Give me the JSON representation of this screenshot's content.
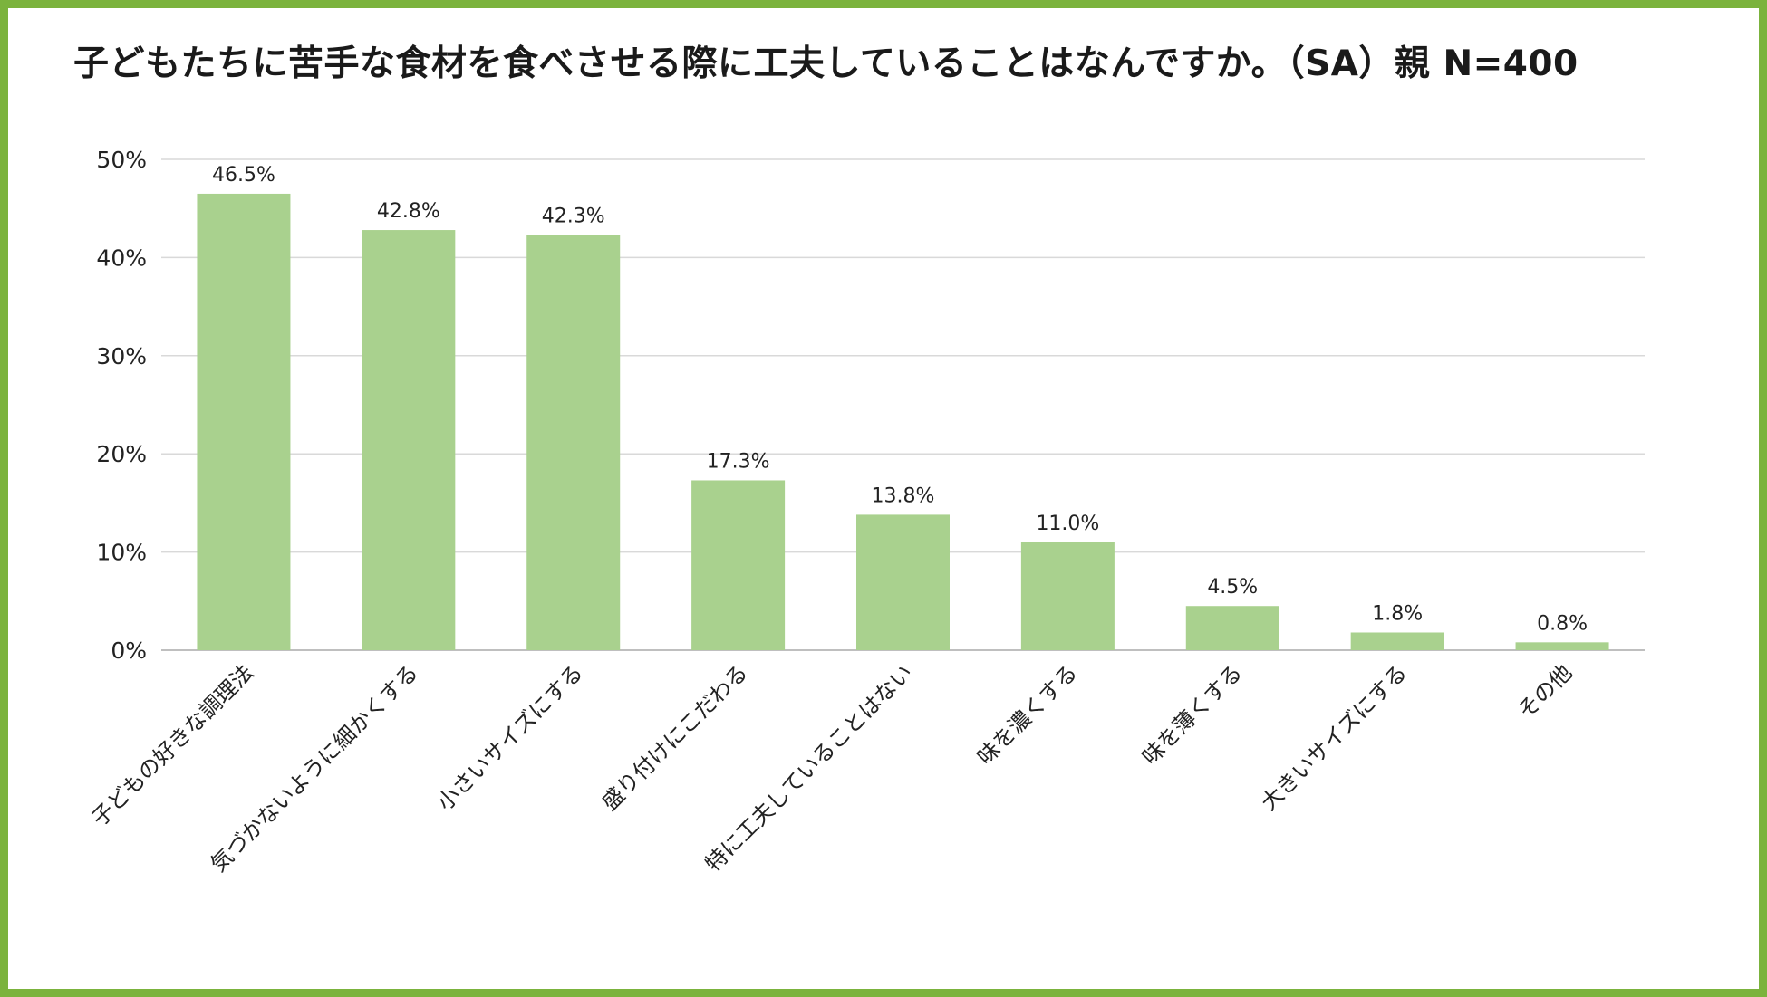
{
  "colors": {
    "frame": "#7bb33d",
    "bar": "#a9d18e",
    "grid": "#d9d9d9",
    "text": "#222222"
  },
  "chart_data": {
    "type": "bar",
    "title": "子どもたちに苦手な食材を食べさせる際に工夫していることはなんですか。（SA）親 N=400",
    "xlabel": "",
    "ylabel": "",
    "ylim": [
      0,
      50
    ],
    "yticks": [
      "0%",
      "10%",
      "20%",
      "30%",
      "40%",
      "50%"
    ],
    "ytick_values": [
      0,
      10,
      20,
      30,
      40,
      50
    ],
    "grid": true,
    "legend": "none",
    "categories": [
      "子どもの好きな調理法",
      "気づかないように細かくする",
      "小さいサイズにする",
      "盛り付けにこだわる",
      "特に工夫していることはない",
      "味を濃くする",
      "味を薄くする",
      "大きいサイズにする",
      "その他"
    ],
    "values": [
      46.5,
      42.8,
      42.3,
      17.3,
      13.8,
      11.0,
      4.5,
      1.8,
      0.8
    ],
    "data_labels": [
      "46.5%",
      "42.8%",
      "42.3%",
      "17.3%",
      "13.8%",
      "11.0%",
      "4.5%",
      "1.8%",
      "0.8%"
    ]
  }
}
